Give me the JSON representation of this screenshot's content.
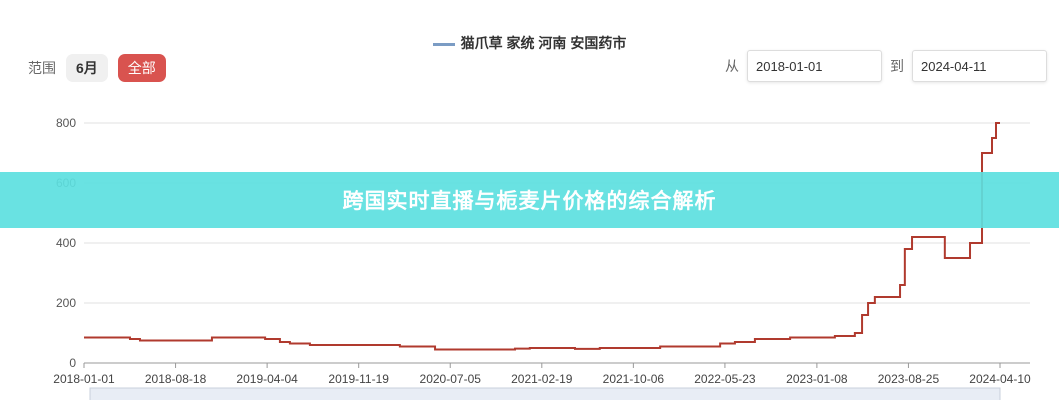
{
  "legend": {
    "label": "猫爪草 家统 河南 安国药市",
    "color": "#7b9cc4"
  },
  "range": {
    "label": "范围",
    "buttons": [
      "6月",
      "全部"
    ],
    "active": "全部",
    "accent": "#d9534f"
  },
  "dates": {
    "from_label": "从",
    "from": "2018-01-01",
    "to_label": "到",
    "to": "2024-04-11"
  },
  "banner": {
    "text": "跨国实时直播与栀麦片价格的综合解析"
  },
  "chart_data": {
    "type": "line",
    "step": true,
    "title": "",
    "xlabel": "",
    "ylabel": "",
    "ylim": [
      0,
      800
    ],
    "yticks": [
      0,
      200,
      400,
      600,
      800
    ],
    "grid": true,
    "xlim": [
      "2018-01-01",
      "2024-04-10"
    ],
    "xticks": [
      "2018-01-01",
      "2018-08-18",
      "2019-04-04",
      "2019-11-19",
      "2020-07-05",
      "2021-02-19",
      "2021-10-06",
      "2022-05-23",
      "2023-01-08",
      "2023-08-25",
      "2024-04-10"
    ],
    "series": [
      {
        "name": "猫爪草 家统 河南 安国药市",
        "color": "#b03a2e",
        "points": [
          [
            "2018-01-01",
            85
          ],
          [
            "2018-04-26",
            80
          ],
          [
            "2018-05-21",
            75
          ],
          [
            "2018-11-17",
            85
          ],
          [
            "2019-03-30",
            80
          ],
          [
            "2019-05-06",
            70
          ],
          [
            "2019-05-31",
            65
          ],
          [
            "2019-07-20",
            60
          ],
          [
            "2020-03-01",
            55
          ],
          [
            "2020-05-28",
            45
          ],
          [
            "2020-12-14",
            48
          ],
          [
            "2021-01-20",
            50
          ],
          [
            "2021-05-13",
            47
          ],
          [
            "2021-07-14",
            50
          ],
          [
            "2021-12-12",
            55
          ],
          [
            "2022-05-11",
            65
          ],
          [
            "2022-06-17",
            70
          ],
          [
            "2022-08-06",
            80
          ],
          [
            "2022-11-02",
            85
          ],
          [
            "2023-02-22",
            90
          ],
          [
            "2023-04-13",
            100
          ],
          [
            "2023-05-01",
            160
          ],
          [
            "2023-05-16",
            200
          ],
          [
            "2023-06-02",
            220
          ],
          [
            "2023-08-04",
            260
          ],
          [
            "2023-08-16",
            380
          ],
          [
            "2023-09-03",
            420
          ],
          [
            "2023-11-24",
            350
          ],
          [
            "2024-01-26",
            400
          ],
          [
            "2024-02-25",
            700
          ],
          [
            "2024-03-21",
            750
          ],
          [
            "2024-03-31",
            800
          ],
          [
            "2024-04-10",
            800
          ]
        ]
      }
    ]
  }
}
